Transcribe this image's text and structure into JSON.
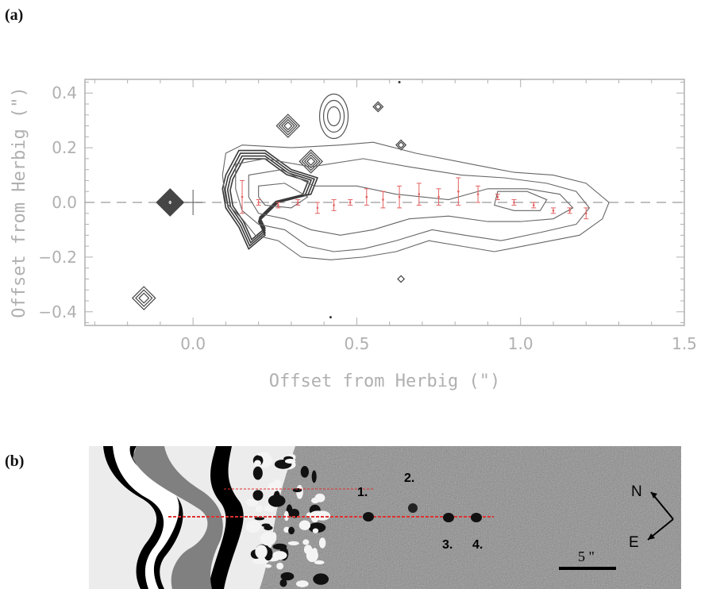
{
  "panels": {
    "a_label": "(a)",
    "b_label": "(b)"
  },
  "chart_data": {
    "type": "contour",
    "xlabel": "Offset from Herbig (\")",
    "ylabel": "Offset from Herbig (\")",
    "xlim": [
      -0.33,
      1.5
    ],
    "ylim": [
      -0.45,
      0.45
    ],
    "xticks": [
      0.0,
      0.5,
      1.0,
      1.5
    ],
    "xtick_labels": [
      "0.0",
      "0.5",
      "1.0",
      "1.5"
    ],
    "yticks": [
      -0.4,
      -0.2,
      0.0,
      0.2,
      0.4
    ],
    "ytick_labels": [
      "−0.4",
      "−0.2",
      "0.0",
      "0.2",
      "0.4"
    ],
    "reference_line_y": 0.0,
    "star_marker": [
      0.0,
      0.0
    ],
    "grid": false,
    "colors": {
      "axis": "#b0b0b0",
      "contour": "#666666",
      "markers": "#e36060",
      "dashed": "#9a9a9a"
    },
    "contour_levels": 4,
    "contours": [
      [
        [
          0.1,
          0.18
        ],
        [
          0.15,
          0.21
        ],
        [
          0.3,
          0.2
        ],
        [
          0.45,
          0.21
        ],
        [
          0.55,
          0.22
        ],
        [
          0.68,
          0.18
        ],
        [
          0.85,
          0.14
        ],
        [
          0.98,
          0.11
        ],
        [
          1.1,
          0.1
        ],
        [
          1.2,
          0.07
        ],
        [
          1.27,
          0.0
        ],
        [
          1.25,
          -0.06
        ],
        [
          1.18,
          -0.12
        ],
        [
          1.05,
          -0.15
        ],
        [
          0.92,
          -0.18
        ],
        [
          0.82,
          -0.16
        ],
        [
          0.72,
          -0.14
        ],
        [
          0.62,
          -0.18
        ],
        [
          0.52,
          -0.2
        ],
        [
          0.42,
          -0.21
        ],
        [
          0.33,
          -0.2
        ],
        [
          0.26,
          -0.14
        ],
        [
          0.19,
          -0.12
        ],
        [
          0.15,
          -0.06
        ],
        [
          0.1,
          0.0
        ],
        [
          0.09,
          0.1
        ]
      ],
      [
        [
          0.13,
          0.14
        ],
        [
          0.22,
          0.16
        ],
        [
          0.36,
          0.13
        ],
        [
          0.52,
          0.16
        ],
        [
          0.66,
          0.13
        ],
        [
          0.82,
          0.1
        ],
        [
          0.95,
          0.09
        ],
        [
          1.08,
          0.07
        ],
        [
          1.17,
          0.04
        ],
        [
          1.21,
          -0.02
        ],
        [
          1.17,
          -0.08
        ],
        [
          1.06,
          -0.11
        ],
        [
          0.94,
          -0.14
        ],
        [
          0.83,
          -0.12
        ],
        [
          0.73,
          -0.1
        ],
        [
          0.62,
          -0.14
        ],
        [
          0.52,
          -0.17
        ],
        [
          0.43,
          -0.18
        ],
        [
          0.35,
          -0.16
        ],
        [
          0.28,
          -0.1
        ],
        [
          0.2,
          -0.08
        ],
        [
          0.15,
          -0.03
        ],
        [
          0.13,
          0.05
        ]
      ],
      [
        [
          0.17,
          0.1
        ],
        [
          0.27,
          0.12
        ],
        [
          0.37,
          0.06
        ],
        [
          0.5,
          0.06
        ],
        [
          0.62,
          0.03
        ],
        [
          0.78,
          0.01
        ],
        [
          0.9,
          0.05
        ],
        [
          1.02,
          0.05
        ],
        [
          1.12,
          0.03
        ],
        [
          1.16,
          -0.02
        ],
        [
          1.1,
          -0.06
        ],
        [
          1.0,
          -0.07
        ],
        [
          0.9,
          -0.07
        ],
        [
          0.78,
          -0.05
        ],
        [
          0.66,
          -0.06
        ],
        [
          0.55,
          -0.1
        ],
        [
          0.45,
          -0.12
        ],
        [
          0.36,
          -0.1
        ],
        [
          0.28,
          -0.06
        ],
        [
          0.2,
          -0.04
        ],
        [
          0.17,
          0.02
        ]
      ],
      [
        [
          0.2,
          0.06
        ],
        [
          0.28,
          0.07
        ],
        [
          0.35,
          0.02
        ],
        [
          0.3,
          -0.02
        ],
        [
          0.22,
          -0.01
        ],
        [
          0.2,
          0.02
        ]
      ],
      [
        [
          0.93,
          0.04
        ],
        [
          1.02,
          0.04
        ],
        [
          1.08,
          0.01
        ],
        [
          1.06,
          -0.03
        ],
        [
          0.98,
          -0.03
        ],
        [
          0.92,
          -0.01
        ]
      ]
    ],
    "knot_markers": {
      "x": [
        0.15,
        0.2,
        0.26,
        0.32,
        0.38,
        0.43,
        0.48,
        0.53,
        0.58,
        0.63,
        0.69,
        0.75,
        0.81,
        0.87,
        0.93,
        0.98,
        1.04,
        1.1,
        1.15,
        1.2
      ],
      "y": [
        0.02,
        0.0,
        -0.01,
        0.0,
        -0.02,
        -0.01,
        0.0,
        0.02,
        0.01,
        0.02,
        0.03,
        0.02,
        0.04,
        0.03,
        0.02,
        0.0,
        -0.01,
        -0.03,
        -0.03,
        -0.04
      ],
      "err": [
        0.06,
        0.01,
        0.01,
        0.01,
        0.02,
        0.02,
        0.01,
        0.03,
        0.03,
        0.04,
        0.04,
        0.03,
        0.05,
        0.03,
        0.01,
        0.01,
        0.01,
        0.01,
        0.01,
        0.02
      ]
    },
    "diamonds": [
      {
        "x": -0.07,
        "y": 0.0,
        "r": 0.04,
        "rings": 6
      },
      {
        "x": -0.15,
        "y": -0.35,
        "r": 0.035,
        "rings": 3
      },
      {
        "x": 0.29,
        "y": 0.28,
        "r": 0.035,
        "rings": 4
      },
      {
        "x": 0.36,
        "y": 0.15,
        "r": 0.035,
        "rings": 4
      },
      {
        "x": 0.565,
        "y": 0.35,
        "r": 0.015,
        "rings": 2
      },
      {
        "x": 0.635,
        "y": 0.21,
        "r": 0.015,
        "rings": 2
      },
      {
        "x": 0.635,
        "y": -0.28,
        "r": 0.01,
        "rings": 1
      }
    ]
  },
  "image_panel": {
    "knots": [
      "1.",
      "2.",
      "3.",
      "4."
    ],
    "compass_n": "N",
    "compass_e": "E",
    "scale_label": "5 \""
  }
}
